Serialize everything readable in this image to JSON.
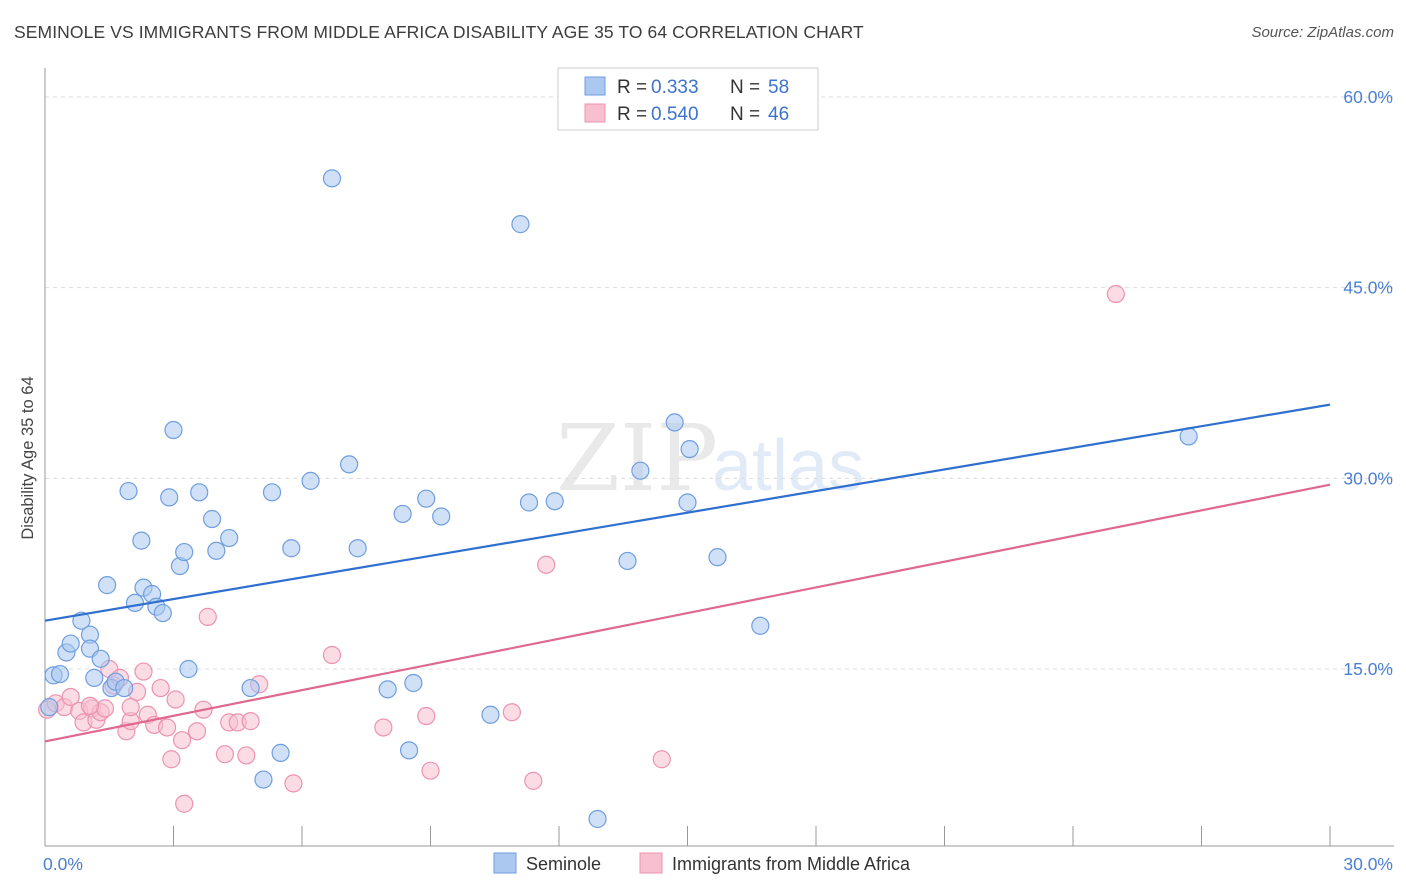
{
  "header": {
    "title": "SEMINOLE VS IMMIGRANTS FROM MIDDLE AFRICA DISABILITY AGE 35 TO 64 CORRELATION CHART",
    "source": "Source: ZipAtlas.com"
  },
  "watermark": {
    "zip": "ZIP",
    "atlas": "atlas"
  },
  "legend_top": {
    "rows": [
      {
        "r_label": "R =",
        "r_value": "0.333",
        "n_label": "N =",
        "n_value": "58"
      },
      {
        "r_label": "R =",
        "r_value": "0.540",
        "n_label": "N =",
        "n_value": "46"
      }
    ]
  },
  "legend_bottom": {
    "items": [
      "Seminole",
      "Immigrants from Middle Africa"
    ]
  },
  "colors": {
    "seminole_fill": "#aac8f0",
    "seminole_stroke": "#6f9ee0",
    "seminole_line": "#2f6fcf",
    "africa_fill": "#f7bfd0",
    "africa_stroke": "#ec93b0",
    "africa_line": "#e06890",
    "tick_label": "#4a7fd4",
    "grid": "#dddddd"
  },
  "chart_data": {
    "type": "scatter",
    "title": "SEMINOLE VS IMMIGRANTS FROM MIDDLE AFRICA DISABILITY AGE 35 TO 64 CORRELATION CHART",
    "xlabel": "",
    "ylabel": "Disability Age 35 to 64",
    "xlim": [
      0,
      30
    ],
    "ylim": [
      0,
      60
    ],
    "x_tick_labels": [
      "0.0%",
      "30.0%"
    ],
    "y_tick_labels": [
      "15.0%",
      "30.0%",
      "45.0%",
      "60.0%"
    ],
    "y_ticks": [
      15,
      30,
      45,
      60
    ],
    "grid": true,
    "legend_position": "top-center",
    "series": [
      {
        "name": "Seminole",
        "R": 0.333,
        "N": 58,
        "trend": {
          "x": [
            0,
            30
          ],
          "y": [
            18.8,
            35.8
          ]
        },
        "points": [
          [
            0.1,
            12.0
          ],
          [
            0.2,
            14.5
          ],
          [
            0.35,
            14.6
          ],
          [
            0.5,
            16.3
          ],
          [
            0.6,
            17.0
          ],
          [
            0.85,
            18.8
          ],
          [
            1.05,
            17.7
          ],
          [
            1.05,
            16.6
          ],
          [
            1.15,
            14.3
          ],
          [
            1.3,
            15.8
          ],
          [
            1.45,
            21.6
          ],
          [
            1.55,
            13.5
          ],
          [
            1.65,
            14.0
          ],
          [
            1.85,
            13.5
          ],
          [
            1.95,
            29.0
          ],
          [
            2.1,
            20.2
          ],
          [
            2.25,
            25.1
          ],
          [
            2.3,
            21.4
          ],
          [
            2.5,
            20.9
          ],
          [
            2.6,
            19.9
          ],
          [
            2.75,
            19.4
          ],
          [
            2.9,
            28.5
          ],
          [
            3.0,
            33.8
          ],
          [
            3.15,
            23.1
          ],
          [
            3.25,
            24.2
          ],
          [
            3.35,
            15.0
          ],
          [
            3.6,
            28.9
          ],
          [
            3.9,
            26.8
          ],
          [
            4.0,
            24.3
          ],
          [
            4.3,
            25.3
          ],
          [
            4.8,
            13.5
          ],
          [
            5.3,
            28.9
          ],
          [
            5.5,
            8.4
          ],
          [
            5.75,
            24.5
          ],
          [
            6.2,
            29.8
          ],
          [
            6.7,
            53.6
          ],
          [
            7.1,
            31.1
          ],
          [
            7.3,
            24.5
          ],
          [
            8.0,
            13.4
          ],
          [
            8.35,
            27.2
          ],
          [
            8.5,
            8.6
          ],
          [
            8.6,
            13.9
          ],
          [
            8.9,
            28.4
          ],
          [
            9.25,
            27.0
          ],
          [
            10.4,
            11.4
          ],
          [
            11.1,
            50.0
          ],
          [
            11.3,
            28.1
          ],
          [
            11.9,
            28.2
          ],
          [
            12.9,
            3.2
          ],
          [
            13.6,
            23.5
          ],
          [
            13.9,
            30.6
          ],
          [
            14.7,
            34.4
          ],
          [
            15.0,
            28.1
          ],
          [
            15.05,
            32.3
          ],
          [
            15.7,
            23.8
          ],
          [
            16.7,
            18.4
          ],
          [
            26.7,
            33.3
          ],
          [
            5.1,
            6.3
          ]
        ]
      },
      {
        "name": "Immigrants from Middle Africa",
        "R": 0.54,
        "N": 46,
        "trend": {
          "x": [
            0,
            30
          ],
          "y": [
            9.3,
            29.5
          ]
        },
        "points": [
          [
            0.05,
            11.8
          ],
          [
            0.25,
            12.3
          ],
          [
            0.45,
            12.0
          ],
          [
            0.6,
            12.8
          ],
          [
            0.8,
            11.7
          ],
          [
            0.9,
            10.8
          ],
          [
            1.1,
            11.9
          ],
          [
            1.2,
            11.0
          ],
          [
            1.3,
            11.6
          ],
          [
            1.4,
            11.9
          ],
          [
            1.5,
            15.0
          ],
          [
            1.6,
            13.7
          ],
          [
            1.75,
            14.3
          ],
          [
            1.9,
            10.1
          ],
          [
            2.0,
            10.9
          ],
          [
            2.15,
            13.2
          ],
          [
            2.3,
            14.8
          ],
          [
            2.4,
            11.4
          ],
          [
            2.55,
            10.6
          ],
          [
            2.7,
            13.5
          ],
          [
            2.85,
            10.4
          ],
          [
            2.95,
            7.9
          ],
          [
            3.05,
            12.6
          ],
          [
            3.2,
            9.4
          ],
          [
            3.25,
            4.4
          ],
          [
            3.55,
            10.1
          ],
          [
            3.7,
            11.8
          ],
          [
            3.8,
            19.1
          ],
          [
            4.2,
            8.3
          ],
          [
            4.3,
            10.8
          ],
          [
            4.5,
            10.8
          ],
          [
            4.7,
            8.2
          ],
          [
            4.8,
            10.9
          ],
          [
            5.0,
            13.8
          ],
          [
            5.8,
            6.0
          ],
          [
            6.7,
            16.1
          ],
          [
            7.9,
            10.4
          ],
          [
            8.9,
            11.3
          ],
          [
            9.0,
            7.0
          ],
          [
            10.9,
            11.6
          ],
          [
            11.4,
            6.2
          ],
          [
            11.7,
            23.2
          ],
          [
            14.4,
            7.9
          ],
          [
            25.0,
            44.5
          ],
          [
            2.0,
            12.0
          ],
          [
            1.05,
            12.1
          ]
        ]
      }
    ]
  }
}
